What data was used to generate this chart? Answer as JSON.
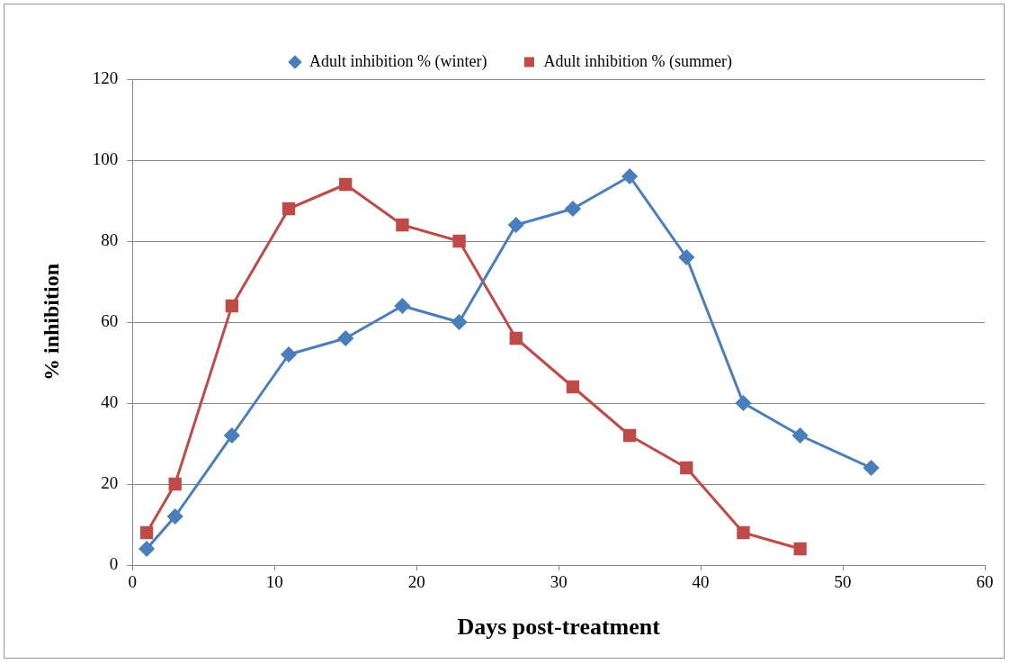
{
  "chart_data": {
    "type": "line",
    "xlabel": "Days post-treatment",
    "ylabel": "% inhibition",
    "series": [
      {
        "name": "Adult inhibition % (winter)",
        "color": "#4a7ebb",
        "marker": "diamond",
        "x": [
          1,
          3,
          7,
          11,
          15,
          19,
          23,
          27,
          31,
          35,
          39,
          43,
          47,
          52
        ],
        "values": [
          4,
          12,
          32,
          52,
          56,
          64,
          60,
          84,
          88,
          96,
          76,
          40,
          32,
          24
        ]
      },
      {
        "name": "Adult inhibition % (summer)",
        "color": "#be4b48",
        "marker": "square",
        "x": [
          1,
          3,
          7,
          11,
          15,
          19,
          23,
          27,
          31,
          35,
          39,
          43,
          47
        ],
        "values": [
          8,
          20,
          64,
          88,
          94,
          84,
          80,
          56,
          44,
          32,
          24,
          8,
          4
        ]
      }
    ],
    "xlim": [
      0,
      60
    ],
    "xticks": [
      0,
      10,
      20,
      30,
      40,
      50,
      60
    ],
    "ylim": [
      0,
      120
    ],
    "yticks": [
      0,
      20,
      40,
      60,
      80,
      100,
      120
    ],
    "grid": "y",
    "legend": "top",
    "line_style": "solid"
  }
}
